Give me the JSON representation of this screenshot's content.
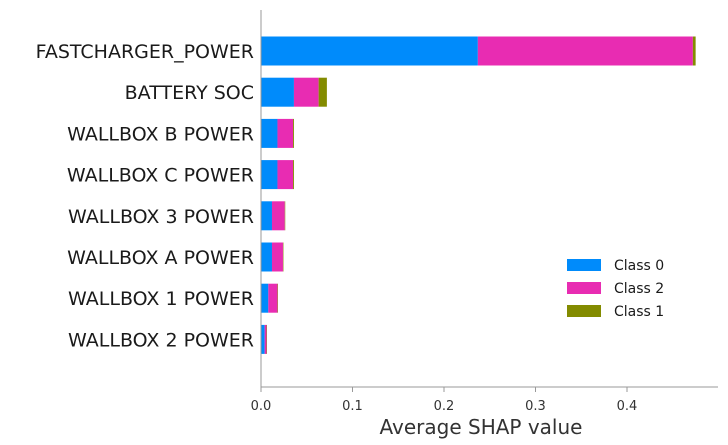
{
  "chart_data": {
    "type": "bar",
    "orientation": "horizontal",
    "stacked": true,
    "xlabel": "Average SHAP value",
    "xlim": [
      0,
      0.5
    ],
    "xticks": [
      "0.0",
      "0.1",
      "0.2",
      "0.3",
      "0.4"
    ],
    "grid": false,
    "legend_position": "center-right",
    "categories": [
      "FASTCHARGER_POWER",
      "BATTERY SOC",
      "WALLBOX B POWER",
      "WALLBOX C POWER",
      "WALLBOX 3 POWER",
      "WALLBOX A POWER",
      "WALLBOX 1 POWER",
      "WALLBOX 2 POWER"
    ],
    "series": [
      {
        "name": "Class 0",
        "color": "#008bfb",
        "values": [
          0.237,
          0.036,
          0.018,
          0.018,
          0.012,
          0.012,
          0.008,
          0.004
        ]
      },
      {
        "name": "Class 2",
        "color": "#e82cb2",
        "values": [
          0.235,
          0.027,
          0.017,
          0.017,
          0.014,
          0.012,
          0.01,
          0.002
        ]
      },
      {
        "name": "Class 1",
        "color": "#838b00",
        "values": [
          0.003,
          0.009,
          0.001,
          0.001,
          0.0005,
          0.0005,
          0.0005,
          0.0005
        ]
      }
    ]
  }
}
